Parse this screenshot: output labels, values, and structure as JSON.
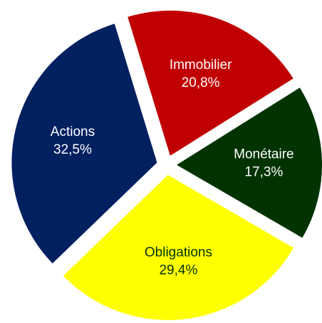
{
  "chart_data": {
    "type": "pie",
    "categories": [
      "Immobilier",
      "Monétaire",
      "Obligations",
      "Actions"
    ],
    "values": [
      20.8,
      17.3,
      29.4,
      32.5
    ],
    "value_labels": [
      "20,8%",
      "17,3%",
      "29,4%",
      "32,5%"
    ],
    "colors": [
      "#c00000",
      "#003300",
      "#ffff00",
      "#002060"
    ],
    "label_colors": [
      "#ffffff",
      "#ffffff",
      "#003300",
      "#ffffff"
    ]
  }
}
